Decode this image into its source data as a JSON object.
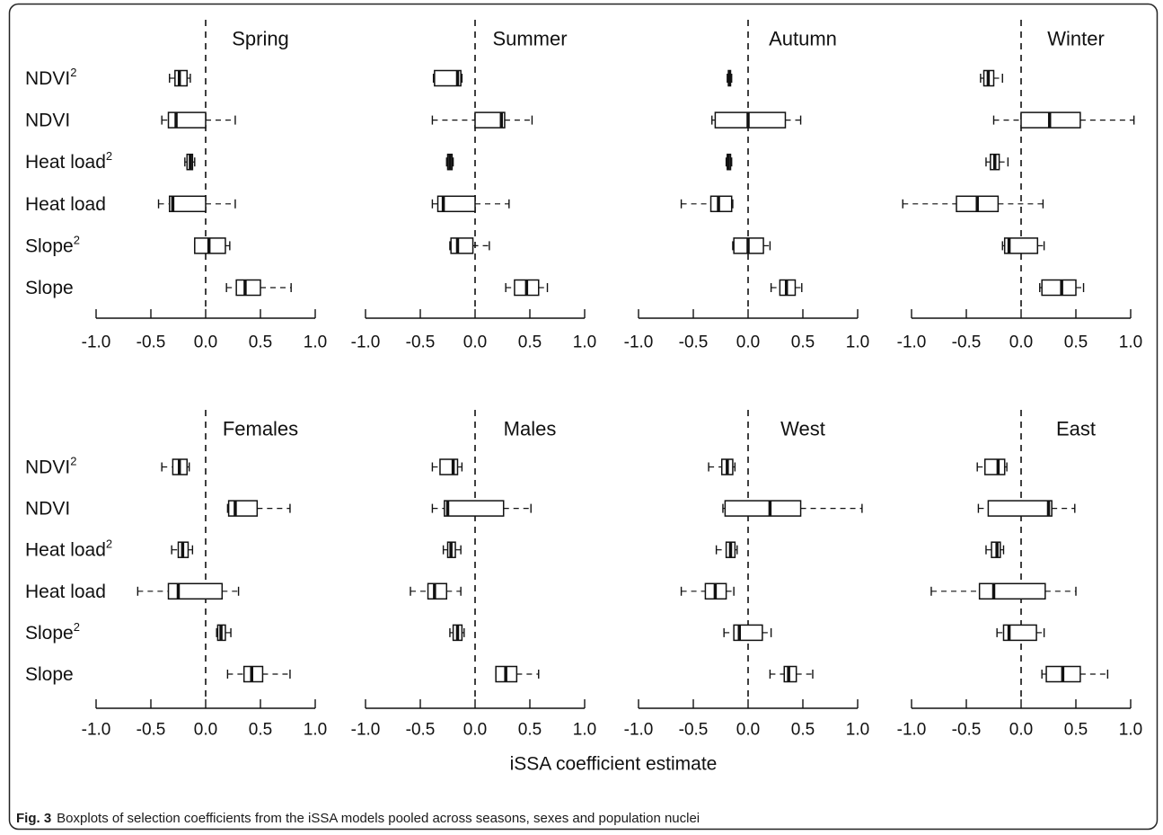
{
  "figure": {
    "caption_label": "Fig. 3",
    "caption_text": "Boxplots of selection coefficients from the iSSA models pooled across seasons, sexes and population nuclei"
  },
  "colors": {
    "line": "#111111",
    "box_fill": "#ffffff"
  },
  "chart_data": {
    "type": "boxplot",
    "orientation": "horizontal",
    "xlabel": "iSSA coefficient estimate",
    "xlim": [
      -1.0,
      1.0
    ],
    "xtick_labels": [
      "-1.0",
      "-0.5",
      "0.0",
      "0.5",
      "1.0"
    ],
    "reference_line_x": 0,
    "categories": [
      {
        "label": "NDVI",
        "sup": "2"
      },
      {
        "label": "NDVI"
      },
      {
        "label": "Heat load",
        "sup": "2"
      },
      {
        "label": "Heat load"
      },
      {
        "label": "Slope",
        "sup": "2"
      },
      {
        "label": "Slope"
      }
    ],
    "panels": [
      {
        "title": "Spring",
        "boxes": [
          {
            "min": -0.33,
            "q1": -0.28,
            "median": -0.24,
            "q3": -0.17,
            "max": -0.14
          },
          {
            "min": -0.4,
            "q1": -0.34,
            "median": -0.27,
            "q3": 0.0,
            "max": 0.27
          },
          {
            "min": -0.19,
            "q1": -0.17,
            "median": -0.14,
            "q3": -0.12,
            "max": -0.1
          },
          {
            "min": -0.43,
            "q1": -0.33,
            "median": -0.3,
            "q3": 0.0,
            "max": 0.27
          },
          {
            "min": -0.1,
            "q1": -0.1,
            "median": 0.03,
            "q3": 0.18,
            "max": 0.22
          },
          {
            "min": 0.19,
            "q1": 0.28,
            "median": 0.36,
            "q3": 0.5,
            "max": 0.78
          }
        ]
      },
      {
        "title": "Summer",
        "boxes": [
          {
            "min": -0.38,
            "q1": -0.37,
            "median": -0.16,
            "q3": -0.13,
            "max": -0.12
          },
          {
            "min": -0.39,
            "q1": 0.0,
            "median": 0.24,
            "q3": 0.27,
            "max": 0.52
          },
          {
            "min": -0.26,
            "q1": -0.25,
            "median": -0.23,
            "q3": -0.21,
            "max": -0.2
          },
          {
            "min": -0.39,
            "q1": -0.34,
            "median": -0.29,
            "q3": 0.0,
            "max": 0.31
          },
          {
            "min": -0.23,
            "q1": -0.22,
            "median": -0.16,
            "q3": -0.02,
            "max": 0.13
          },
          {
            "min": 0.28,
            "q1": 0.36,
            "median": 0.47,
            "q3": 0.58,
            "max": 0.66
          }
        ]
      },
      {
        "title": "Autumn",
        "boxes": [
          {
            "min": -0.19,
            "q1": -0.18,
            "median": -0.17,
            "q3": -0.16,
            "max": -0.15
          },
          {
            "min": -0.33,
            "q1": -0.3,
            "median": 0.0,
            "q3": 0.34,
            "max": 0.48
          },
          {
            "min": -0.2,
            "q1": -0.19,
            "median": -0.18,
            "q3": -0.16,
            "max": -0.15
          },
          {
            "min": -0.61,
            "q1": -0.34,
            "median": -0.27,
            "q3": -0.15,
            "max": -0.14
          },
          {
            "min": -0.14,
            "q1": -0.13,
            "median": 0.0,
            "q3": 0.14,
            "max": 0.2
          },
          {
            "min": 0.21,
            "q1": 0.29,
            "median": 0.35,
            "q3": 0.43,
            "max": 0.49
          }
        ]
      },
      {
        "title": "Winter",
        "boxes": [
          {
            "min": -0.37,
            "q1": -0.34,
            "median": -0.3,
            "q3": -0.25,
            "max": -0.17
          },
          {
            "min": -0.25,
            "q1": 0.0,
            "median": 0.26,
            "q3": 0.54,
            "max": 1.03
          },
          {
            "min": -0.32,
            "q1": -0.28,
            "median": -0.24,
            "q3": -0.2,
            "max": -0.12
          },
          {
            "min": -1.08,
            "q1": -0.59,
            "median": -0.4,
            "q3": -0.21,
            "max": 0.2
          },
          {
            "min": -0.17,
            "q1": -0.15,
            "median": -0.11,
            "q3": 0.15,
            "max": 0.21
          },
          {
            "min": 0.17,
            "q1": 0.19,
            "median": 0.37,
            "q3": 0.5,
            "max": 0.57
          }
        ]
      },
      {
        "title": "Females",
        "boxes": [
          {
            "min": -0.4,
            "q1": -0.3,
            "median": -0.24,
            "q3": -0.17,
            "max": -0.15
          },
          {
            "min": 0.2,
            "q1": 0.21,
            "median": 0.27,
            "q3": 0.47,
            "max": 0.77
          },
          {
            "min": -0.31,
            "q1": -0.25,
            "median": -0.21,
            "q3": -0.16,
            "max": -0.12
          },
          {
            "min": -0.62,
            "q1": -0.34,
            "median": -0.25,
            "q3": 0.15,
            "max": 0.3
          },
          {
            "min": 0.1,
            "q1": 0.11,
            "median": 0.14,
            "q3": 0.18,
            "max": 0.23
          },
          {
            "min": 0.2,
            "q1": 0.35,
            "median": 0.42,
            "q3": 0.52,
            "max": 0.77
          }
        ]
      },
      {
        "title": "Males",
        "boxes": [
          {
            "min": -0.39,
            "q1": -0.32,
            "median": -0.2,
            "q3": -0.16,
            "max": -0.12
          },
          {
            "min": -0.39,
            "q1": -0.28,
            "median": -0.25,
            "q3": 0.26,
            "max": 0.51
          },
          {
            "min": -0.29,
            "q1": -0.25,
            "median": -0.22,
            "q3": -0.18,
            "max": -0.13
          },
          {
            "min": -0.59,
            "q1": -0.43,
            "median": -0.37,
            "q3": -0.26,
            "max": -0.13
          },
          {
            "min": -0.23,
            "q1": -0.2,
            "median": -0.16,
            "q3": -0.12,
            "max": -0.1
          },
          {
            "min": 0.19,
            "q1": 0.19,
            "median": 0.28,
            "q3": 0.38,
            "max": 0.58
          }
        ]
      },
      {
        "title": "West",
        "boxes": [
          {
            "min": -0.36,
            "q1": -0.24,
            "median": -0.19,
            "q3": -0.14,
            "max": -0.12
          },
          {
            "min": -0.23,
            "q1": -0.21,
            "median": 0.2,
            "q3": 0.48,
            "max": 1.04
          },
          {
            "min": -0.29,
            "q1": -0.2,
            "median": -0.16,
            "q3": -0.12,
            "max": -0.1
          },
          {
            "min": -0.61,
            "q1": -0.39,
            "median": -0.3,
            "q3": -0.2,
            "max": -0.13
          },
          {
            "min": -0.22,
            "q1": -0.13,
            "median": -0.08,
            "q3": 0.13,
            "max": 0.21
          },
          {
            "min": 0.2,
            "q1": 0.33,
            "median": 0.37,
            "q3": 0.44,
            "max": 0.59
          }
        ]
      },
      {
        "title": "East",
        "boxes": [
          {
            "min": -0.4,
            "q1": -0.33,
            "median": -0.21,
            "q3": -0.15,
            "max": -0.13
          },
          {
            "min": -0.39,
            "q1": -0.3,
            "median": 0.25,
            "q3": 0.28,
            "max": 0.49
          },
          {
            "min": -0.32,
            "q1": -0.27,
            "median": -0.22,
            "q3": -0.19,
            "max": -0.16
          },
          {
            "min": -0.82,
            "q1": -0.38,
            "median": -0.25,
            "q3": 0.22,
            "max": 0.5
          },
          {
            "min": -0.22,
            "q1": -0.16,
            "median": -0.11,
            "q3": 0.14,
            "max": 0.21
          },
          {
            "min": 0.19,
            "q1": 0.23,
            "median": 0.38,
            "q3": 0.54,
            "max": 0.79
          }
        ]
      }
    ]
  }
}
